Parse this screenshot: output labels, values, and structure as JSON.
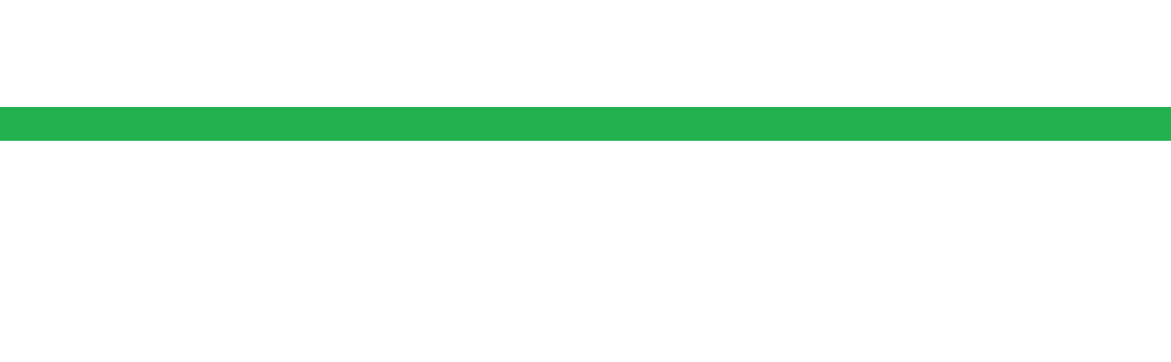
{
  "page": {
    "background_color": "#ffffff"
  },
  "band": {
    "color": "#23b14f"
  }
}
